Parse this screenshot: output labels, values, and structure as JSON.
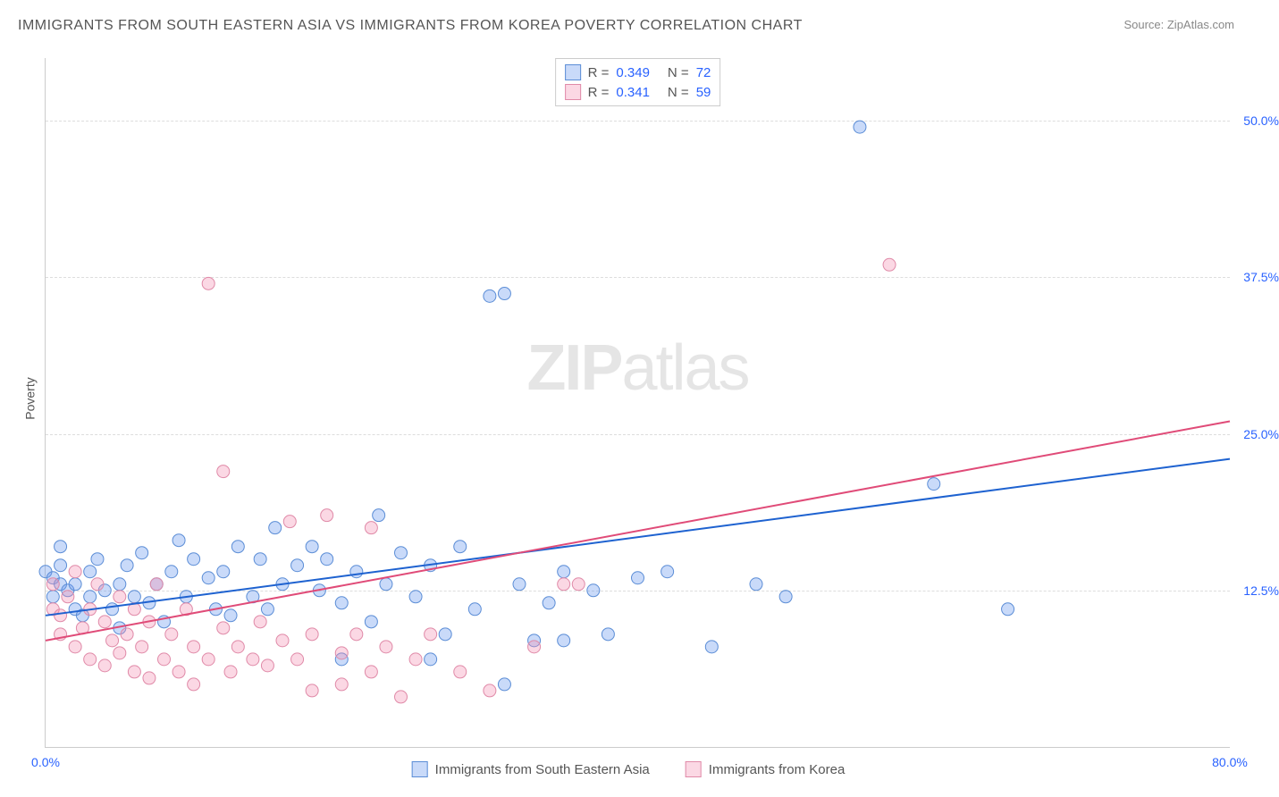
{
  "title": "IMMIGRANTS FROM SOUTH EASTERN ASIA VS IMMIGRANTS FROM KOREA POVERTY CORRELATION CHART",
  "source": "Source: ZipAtlas.com",
  "watermark_part1": "ZIP",
  "watermark_part2": "atlas",
  "ylabel": "Poverty",
  "chart": {
    "type": "scatter",
    "xlim": [
      0,
      80
    ],
    "ylim": [
      0,
      55
    ],
    "xtick_labels": [
      "0.0%",
      "80.0%"
    ],
    "xtick_positions": [
      0,
      80
    ],
    "xtick_color": "#2962ff",
    "ytick_labels": [
      "12.5%",
      "25.0%",
      "37.5%",
      "50.0%"
    ],
    "ytick_positions": [
      12.5,
      25,
      37.5,
      50
    ],
    "ytick_color": "#2962ff",
    "grid_color": "#dddddd",
    "background_color": "#ffffff",
    "series": [
      {
        "name": "Immigrants from South Eastern Asia",
        "color_fill": "rgba(100,149,237,0.35)",
        "color_stroke": "#5b8dd6",
        "marker_radius": 7,
        "trend_color": "#1e62d0",
        "trend_width": 2,
        "r_value": "0.349",
        "n_value": "72",
        "trend": {
          "x1": 0,
          "y1": 10.5,
          "x2": 80,
          "y2": 23.0
        },
        "points": [
          [
            0,
            14
          ],
          [
            0.5,
            13.5
          ],
          [
            0.5,
            12
          ],
          [
            1,
            13
          ],
          [
            1,
            14.5
          ],
          [
            1,
            16
          ],
          [
            1.5,
            12.5
          ],
          [
            2,
            11
          ],
          [
            2,
            13
          ],
          [
            2.5,
            10.5
          ],
          [
            3,
            14
          ],
          [
            3,
            12
          ],
          [
            3.5,
            15
          ],
          [
            4,
            12.5
          ],
          [
            4.5,
            11
          ],
          [
            5,
            13
          ],
          [
            5,
            9.5
          ],
          [
            5.5,
            14.5
          ],
          [
            6,
            12
          ],
          [
            6.5,
            15.5
          ],
          [
            7,
            11.5
          ],
          [
            7.5,
            13
          ],
          [
            8,
            10
          ],
          [
            8.5,
            14
          ],
          [
            9,
            16.5
          ],
          [
            9.5,
            12
          ],
          [
            10,
            15
          ],
          [
            11,
            13.5
          ],
          [
            11.5,
            11
          ],
          [
            12,
            14
          ],
          [
            12.5,
            10.5
          ],
          [
            13,
            16
          ],
          [
            14,
            12
          ],
          [
            14.5,
            15
          ],
          [
            15,
            11
          ],
          [
            15.5,
            17.5
          ],
          [
            16,
            13
          ],
          [
            17,
            14.5
          ],
          [
            18,
            16
          ],
          [
            18.5,
            12.5
          ],
          [
            19,
            15
          ],
          [
            20,
            11.5
          ],
          [
            21,
            14
          ],
          [
            22,
            10
          ],
          [
            22.5,
            18.5
          ],
          [
            23,
            13
          ],
          [
            24,
            15.5
          ],
          [
            25,
            12
          ],
          [
            26,
            14.5
          ],
          [
            27,
            9
          ],
          [
            28,
            16
          ],
          [
            29,
            11
          ],
          [
            30,
            36
          ],
          [
            31,
            36.2
          ],
          [
            32,
            13
          ],
          [
            33,
            8.5
          ],
          [
            31,
            5
          ],
          [
            34,
            11.5
          ],
          [
            26,
            7
          ],
          [
            35,
            14
          ],
          [
            37,
            12.5
          ],
          [
            38,
            9
          ],
          [
            40,
            13.5
          ],
          [
            42,
            14
          ],
          [
            45,
            8
          ],
          [
            48,
            13
          ],
          [
            50,
            12
          ],
          [
            55,
            49.5
          ],
          [
            60,
            21
          ],
          [
            65,
            11
          ],
          [
            35,
            8.5
          ],
          [
            20,
            7
          ]
        ]
      },
      {
        "name": "Immigrants from Korea",
        "color_fill": "rgba(244,143,177,0.35)",
        "color_stroke": "#e08aa8",
        "marker_radius": 7,
        "trend_color": "#e04b78",
        "trend_width": 2,
        "r_value": "0.341",
        "n_value": "59",
        "trend": {
          "x1": 0,
          "y1": 8.5,
          "x2": 80,
          "y2": 26.0
        },
        "points": [
          [
            0.5,
            11
          ],
          [
            0.5,
            13
          ],
          [
            1,
            9
          ],
          [
            1,
            10.5
          ],
          [
            1.5,
            12
          ],
          [
            2,
            8
          ],
          [
            2,
            14
          ],
          [
            2.5,
            9.5
          ],
          [
            3,
            11
          ],
          [
            3,
            7
          ],
          [
            3.5,
            13
          ],
          [
            4,
            10
          ],
          [
            4,
            6.5
          ],
          [
            4.5,
            8.5
          ],
          [
            5,
            12
          ],
          [
            5,
            7.5
          ],
          [
            5.5,
            9
          ],
          [
            6,
            11
          ],
          [
            6,
            6
          ],
          [
            6.5,
            8
          ],
          [
            7,
            10
          ],
          [
            7,
            5.5
          ],
          [
            7.5,
            13
          ],
          [
            8,
            7
          ],
          [
            8.5,
            9
          ],
          [
            9,
            6
          ],
          [
            9.5,
            11
          ],
          [
            10,
            8
          ],
          [
            10,
            5
          ],
          [
            11,
            37
          ],
          [
            11,
            7
          ],
          [
            12,
            9.5
          ],
          [
            12,
            22
          ],
          [
            12.5,
            6
          ],
          [
            13,
            8
          ],
          [
            14,
            7
          ],
          [
            14.5,
            10
          ],
          [
            15,
            6.5
          ],
          [
            16,
            8.5
          ],
          [
            16.5,
            18
          ],
          [
            17,
            7
          ],
          [
            18,
            9
          ],
          [
            18,
            4.5
          ],
          [
            19,
            18.5
          ],
          [
            20,
            7.5
          ],
          [
            20,
            5
          ],
          [
            21,
            9
          ],
          [
            22,
            6
          ],
          [
            22,
            17.5
          ],
          [
            23,
            8
          ],
          [
            24,
            4
          ],
          [
            25,
            7
          ],
          [
            26,
            9
          ],
          [
            28,
            6
          ],
          [
            30,
            4.5
          ],
          [
            33,
            8
          ],
          [
            36,
            13
          ],
          [
            57,
            38.5
          ],
          [
            35,
            13
          ]
        ]
      }
    ]
  },
  "legend_top": {
    "r_label": "R =",
    "n_label": "N ="
  },
  "legend_bottom": {
    "items": [
      "Immigrants from South Eastern Asia",
      "Immigrants from Korea"
    ]
  }
}
